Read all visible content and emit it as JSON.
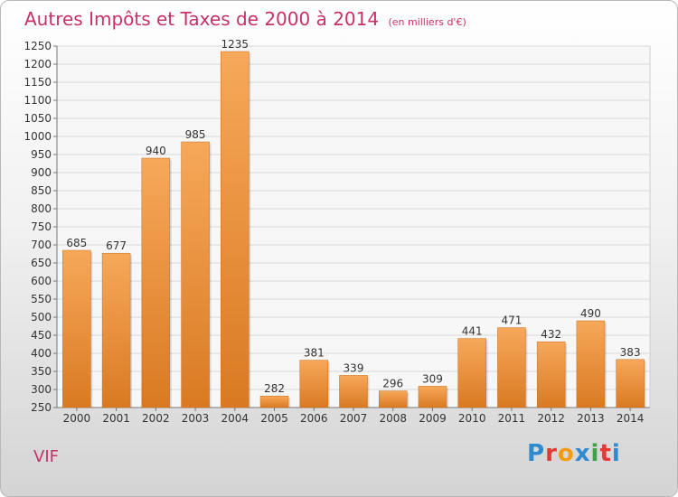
{
  "title": "Autres Impôts et Taxes de 2000 à 2014",
  "subtitle": "(en milliers d'€)",
  "place": "VIF",
  "logo": {
    "letters": [
      "P",
      "r",
      "o",
      "x",
      "i",
      "t",
      "i"
    ],
    "colors": [
      "#2e8bd0",
      "#e53935",
      "#f39c12",
      "#2e8bd0",
      "#43a047",
      "#e53935",
      "#2e8bd0"
    ]
  },
  "colors": {
    "title": "#c8306a",
    "bar_light": "#f7a85a",
    "bar_dark": "#d97a22",
    "grid": "#d8d8d8"
  },
  "chart_data": {
    "type": "bar",
    "categories": [
      "2000",
      "2001",
      "2002",
      "2003",
      "2004",
      "2005",
      "2006",
      "2007",
      "2008",
      "2009",
      "2010",
      "2011",
      "2012",
      "2013",
      "2014"
    ],
    "values": [
      685,
      677,
      940,
      985,
      1235,
      282,
      381,
      339,
      296,
      309,
      441,
      471,
      432,
      490,
      383
    ],
    "ylim": [
      250,
      1250
    ],
    "ytick_step": 50,
    "grid": true
  }
}
